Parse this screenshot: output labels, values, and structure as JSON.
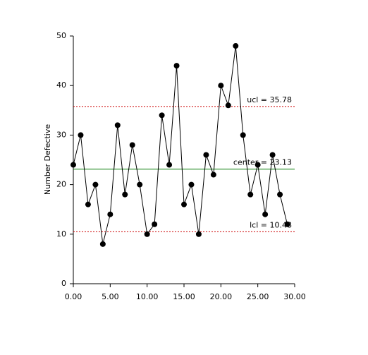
{
  "chart_data": {
    "type": "line",
    "y_axis_label": "Number Defective",
    "x": [
      0,
      1,
      2,
      3,
      4,
      5,
      6,
      7,
      8,
      9,
      10,
      11,
      12,
      13,
      14,
      15,
      16,
      17,
      18,
      19,
      20,
      21,
      22,
      23,
      24,
      25,
      26,
      27,
      28,
      29
    ],
    "series": [
      {
        "color": "#000000",
        "values": [
          24,
          30,
          16,
          20,
          8,
          14,
          32,
          18,
          28,
          20,
          10,
          12,
          34,
          24,
          44,
          16,
          20,
          10,
          26,
          22,
          40,
          36,
          48,
          30,
          18,
          24,
          14,
          26,
          18,
          12
        ]
      }
    ],
    "reference_lines": [
      {
        "label": "ucl = 35.78",
        "value": 35.78,
        "color": "#cc0000",
        "style": "dotted"
      },
      {
        "label": "center = 23.13",
        "value": 23.13,
        "color": "#007700",
        "style": "solid"
      },
      {
        "label": "lcl = 10.48",
        "value": 10.48,
        "color": "#cc0000",
        "style": "dotted"
      }
    ],
    "xlim": [
      0,
      30
    ],
    "xticks": [
      {
        "value": 0,
        "label": "0.00"
      },
      {
        "value": 5,
        "label": "5.00"
      },
      {
        "value": 10,
        "label": "10.00"
      },
      {
        "value": 15,
        "label": "15.00"
      },
      {
        "value": 20,
        "label": "20.00"
      },
      {
        "value": 25,
        "label": "25.00"
      },
      {
        "value": 30,
        "label": "30.00"
      }
    ],
    "ylim": [
      0,
      50
    ],
    "yticks": [
      0,
      10,
      20,
      30,
      40,
      50
    ]
  }
}
